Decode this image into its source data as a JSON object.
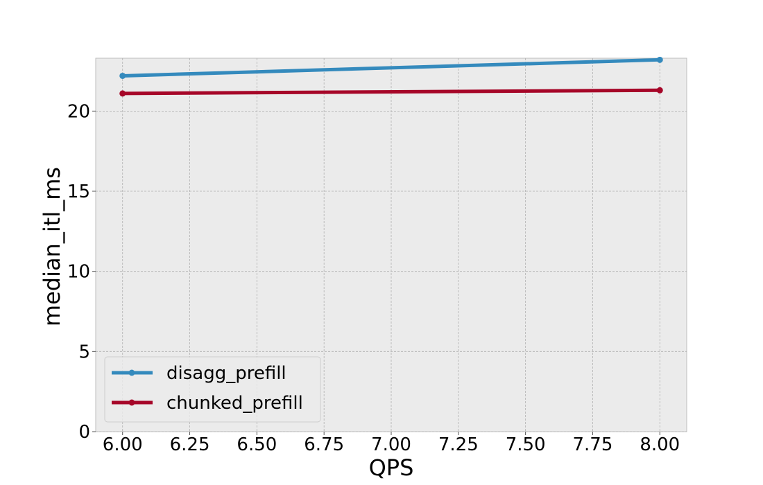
{
  "chart_data": {
    "type": "line",
    "title": "",
    "xlabel": "QPS",
    "ylabel": "median_itl_ms",
    "xlim": [
      5.9,
      8.1
    ],
    "ylim": [
      0,
      23.3
    ],
    "xticks": [
      "6.00",
      "6.25",
      "6.50",
      "6.75",
      "7.00",
      "7.25",
      "7.50",
      "7.75",
      "8.00"
    ],
    "yticks": [
      "0",
      "5",
      "10",
      "15",
      "20"
    ],
    "grid": true,
    "legend_position": "lower-left",
    "series": [
      {
        "name": "disagg_prefill",
        "color": "#348abd",
        "x": [
          6.0,
          8.0
        ],
        "y": [
          22.2,
          23.2
        ]
      },
      {
        "name": "chunked_prefill",
        "color": "#a60628",
        "x": [
          6.0,
          8.0
        ],
        "y": [
          21.1,
          21.3
        ]
      }
    ],
    "background_color": "#ebebeb",
    "grid_color": "#b0b0b0"
  }
}
